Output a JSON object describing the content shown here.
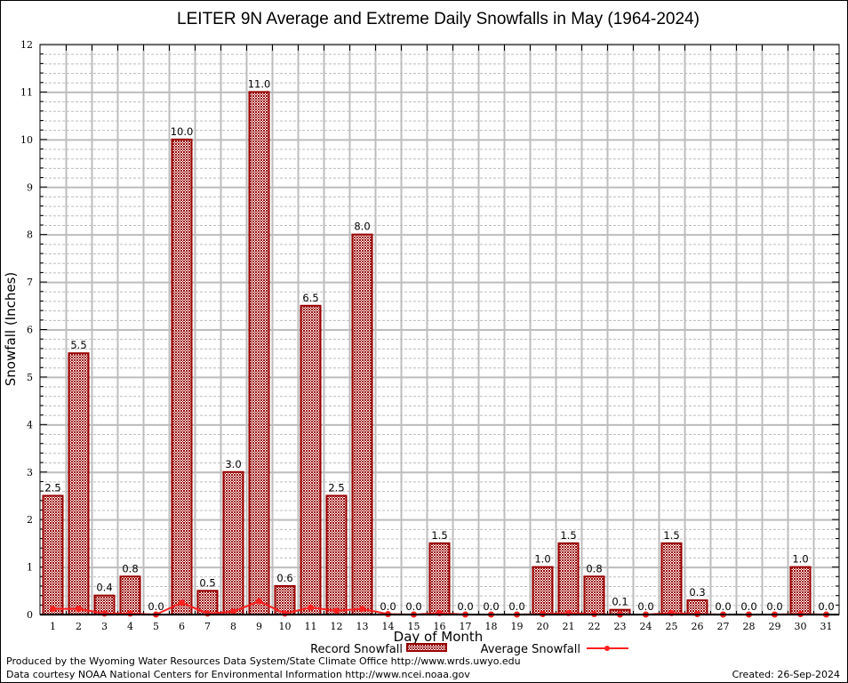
{
  "chart_data": {
    "type": "bar",
    "title": "LEITER 9N Average and Extreme Daily Snowfalls in May (1964-2024)",
    "xlabel": "Day of Month",
    "ylabel": "Snowfall (Inches)",
    "ylim": [
      0,
      12
    ],
    "yticks": [
      0,
      1,
      2,
      3,
      4,
      5,
      6,
      7,
      8,
      9,
      10,
      11,
      12
    ],
    "grid": true,
    "legend_position": "bottom",
    "categories": [
      "1",
      "2",
      "3",
      "4",
      "5",
      "6",
      "7",
      "8",
      "9",
      "10",
      "11",
      "12",
      "13",
      "14",
      "15",
      "16",
      "17",
      "18",
      "19",
      "20",
      "21",
      "22",
      "23",
      "24",
      "25",
      "26",
      "27",
      "28",
      "29",
      "30",
      "31"
    ],
    "series": [
      {
        "name": "Record Snowfall",
        "type": "bar",
        "color": "#990000",
        "values": [
          2.5,
          5.5,
          0.4,
          0.8,
          0.0,
          10.0,
          0.5,
          3.0,
          11.0,
          0.6,
          6.5,
          2.5,
          8.0,
          0.0,
          0.0,
          1.5,
          0.0,
          0.0,
          0.0,
          1.0,
          1.5,
          0.8,
          0.1,
          0.0,
          1.5,
          0.3,
          0.0,
          0.0,
          0.0,
          1.0,
          0.0
        ],
        "labels": [
          "2.5",
          "5.5",
          "0.4",
          "0.8",
          "0.0",
          "10.0",
          "0.5",
          "3.0",
          "11.0",
          "0.6",
          "6.5",
          "2.5",
          "8.0",
          "0.0",
          "0.0",
          "1.5",
          "0.0",
          "0.0",
          "0.0",
          "1.0",
          "1.5",
          "0.8",
          "0.1",
          "0.0",
          "1.5",
          "0.3",
          "0.0",
          "0.0",
          "0.0",
          "1.0",
          "0.0"
        ]
      },
      {
        "name": "Average Snowfall",
        "type": "line",
        "color": "#ff2020",
        "values": [
          0.12,
          0.12,
          0.02,
          0.02,
          0.0,
          0.25,
          0.02,
          0.06,
          0.28,
          0.02,
          0.15,
          0.08,
          0.12,
          0.01,
          0.0,
          0.03,
          0.0,
          0.0,
          0.0,
          0.01,
          0.03,
          0.01,
          0.0,
          0.0,
          0.03,
          0.01,
          0.0,
          0.0,
          0.0,
          0.01,
          0.0
        ]
      }
    ]
  },
  "footer": {
    "produced_by": "Produced by the Wyoming Water Resources Data System/State Climate Office http://www.wrds.uwyo.edu",
    "data_courtesy": "Data courtesy NOAA National Centers for Environmental Information http://www.ncei.noaa.gov",
    "created": "Created: 26-Sep-2024"
  }
}
